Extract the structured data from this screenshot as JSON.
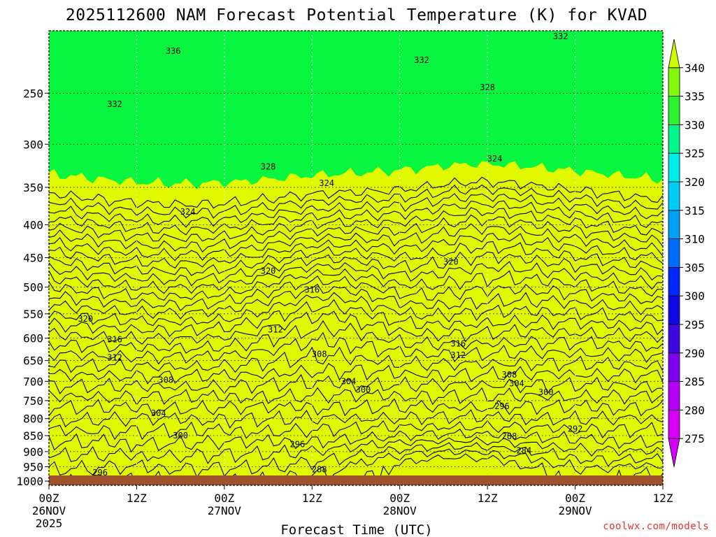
{
  "chart_data": {
    "type": "contour",
    "title": "2025112600 NAM Forecast Potential Temperature (K) for KVAD",
    "xlabel": "Forecast Time (UTC)",
    "ylabel": "",
    "x_ticks": [
      {
        "h": 0,
        "line1": "00Z",
        "line2": "26NOV",
        "line3": "2025"
      },
      {
        "h": 12,
        "line1": "12Z",
        "line2": "",
        "line3": ""
      },
      {
        "h": 24,
        "line1": "00Z",
        "line2": "27NOV",
        "line3": ""
      },
      {
        "h": 36,
        "line1": "12Z",
        "line2": "",
        "line3": ""
      },
      {
        "h": 48,
        "line1": "00Z",
        "line2": "28NOV",
        "line3": ""
      },
      {
        "h": 60,
        "line1": "12Z",
        "line2": "",
        "line3": ""
      },
      {
        "h": 72,
        "line1": "00Z",
        "line2": "29NOV",
        "line3": ""
      },
      {
        "h": 84,
        "line1": "12Z",
        "line2": "",
        "line3": ""
      }
    ],
    "xlim": [
      0,
      84
    ],
    "y_ticks": [
      250,
      300,
      350,
      400,
      450,
      500,
      550,
      600,
      650,
      700,
      750,
      800,
      850,
      900,
      950,
      1000
    ],
    "ylim_hPa": [
      1015,
      200
    ],
    "colorbar": {
      "ticks": [
        340,
        335,
        330,
        325,
        320,
        315,
        310,
        305,
        300,
        295,
        290,
        285,
        280,
        275
      ],
      "range": [
        270,
        345
      ]
    },
    "contour_labels": [
      {
        "label": "336",
        "h": 17,
        "p": 215
      },
      {
        "label": "332",
        "h": 9,
        "p": 260
      },
      {
        "label": "332",
        "h": 51,
        "p": 222
      },
      {
        "label": "332",
        "h": 70,
        "p": 204
      },
      {
        "label": "328",
        "h": 30,
        "p": 325
      },
      {
        "label": "328",
        "h": 60,
        "p": 245
      },
      {
        "label": "324",
        "h": 38,
        "p": 345
      },
      {
        "label": "324",
        "h": 19,
        "p": 382
      },
      {
        "label": "324",
        "h": 61,
        "p": 316
      },
      {
        "label": "320",
        "h": 5,
        "p": 560
      },
      {
        "label": "320",
        "h": 30,
        "p": 472
      },
      {
        "label": "320",
        "h": 55,
        "p": 457
      },
      {
        "label": "316",
        "h": 9,
        "p": 603
      },
      {
        "label": "316",
        "h": 36,
        "p": 505
      },
      {
        "label": "316",
        "h": 56,
        "p": 612
      },
      {
        "label": "312",
        "h": 9,
        "p": 643
      },
      {
        "label": "312",
        "h": 31,
        "p": 582
      },
      {
        "label": "312",
        "h": 56,
        "p": 638
      },
      {
        "label": "308",
        "h": 16,
        "p": 697
      },
      {
        "label": "308",
        "h": 37,
        "p": 635
      },
      {
        "label": "308",
        "h": 63,
        "p": 684
      },
      {
        "label": "304",
        "h": 15,
        "p": 785
      },
      {
        "label": "304",
        "h": 41,
        "p": 700
      },
      {
        "label": "304",
        "h": 64,
        "p": 706
      },
      {
        "label": "300",
        "h": 18,
        "p": 850
      },
      {
        "label": "300",
        "h": 43,
        "p": 722
      },
      {
        "label": "300",
        "h": 68,
        "p": 728
      },
      {
        "label": "296",
        "h": 34,
        "p": 877
      },
      {
        "label": "296",
        "h": 62,
        "p": 765
      },
      {
        "label": "296",
        "h": 7,
        "p": 970
      },
      {
        "label": "292",
        "h": 72,
        "p": 830
      },
      {
        "label": "288",
        "h": 37,
        "p": 960
      },
      {
        "label": "288",
        "h": 63,
        "p": 852
      },
      {
        "label": "284",
        "h": 65,
        "p": 897
      }
    ]
  },
  "credit": "coolwx.com/models"
}
